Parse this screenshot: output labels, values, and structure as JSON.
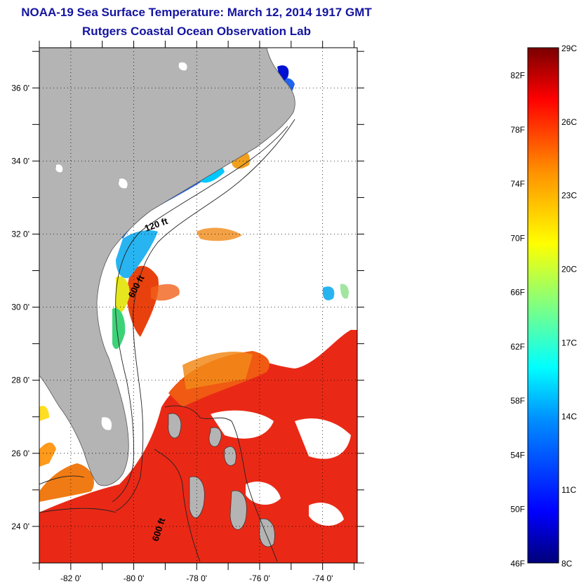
{
  "header": {
    "title": "NOAA-19 Sea Surface Temperature:  March 12, 2014 1917 GMT",
    "subtitle": "Rutgers Coastal Ocean Observation Lab"
  },
  "map": {
    "lon_range": [
      -83.0,
      -72.9
    ],
    "lat_range": [
      23.0,
      37.1
    ],
    "lat_ticks": [
      {
        "lat": 36,
        "label": "36 0'"
      },
      {
        "lat": 34,
        "label": "34 0'"
      },
      {
        "lat": 32,
        "label": "32 0'"
      },
      {
        "lat": 30,
        "label": "30 0'"
      },
      {
        "lat": 28,
        "label": "28 0'"
      },
      {
        "lat": 26,
        "label": "26 0'"
      },
      {
        "lat": 24,
        "label": "24 0'"
      }
    ],
    "lon_ticks": [
      {
        "lon": -82,
        "label": "-82 0'"
      },
      {
        "lon": -80,
        "label": "-80 0'"
      },
      {
        "lon": -78,
        "label": "-78 0'"
      },
      {
        "lon": -76,
        "label": "-76 0'"
      },
      {
        "lon": -74,
        "label": "-74 0'"
      }
    ],
    "contour_labels": [
      "120 ft",
      "600 ft",
      "600 ft"
    ],
    "colors": {
      "land": "#b4b4b4",
      "ocean_no_data": "#ffffff",
      "grid": "#000000"
    }
  },
  "colorbar": {
    "range_c": [
      8,
      29
    ],
    "range_f": [
      46,
      84
    ],
    "celsius_labels": [
      {
        "value": 29,
        "label": "29C"
      },
      {
        "value": 26,
        "label": "26C"
      },
      {
        "value": 23,
        "label": "23C"
      },
      {
        "value": 20,
        "label": "20C"
      },
      {
        "value": 17,
        "label": "17C"
      },
      {
        "value": 14,
        "label": "14C"
      },
      {
        "value": 11,
        "label": "11C"
      },
      {
        "value": 8,
        "label": "8C"
      }
    ],
    "fahrenheit_labels": [
      {
        "value": 82,
        "label": "82F"
      },
      {
        "value": 78,
        "label": "78F"
      },
      {
        "value": 74,
        "label": "74F"
      },
      {
        "value": 70,
        "label": "70F"
      },
      {
        "value": 66,
        "label": "66F"
      },
      {
        "value": 62,
        "label": "62F"
      },
      {
        "value": 58,
        "label": "58F"
      },
      {
        "value": 54,
        "label": "54F"
      },
      {
        "value": 50,
        "label": "50F"
      },
      {
        "value": 46,
        "label": "46F"
      }
    ],
    "stops": [
      "#00007a",
      "#0000ff",
      "#0090ff",
      "#00ffff",
      "#80ff80",
      "#ffff00",
      "#ff9000",
      "#ff0000",
      "#7a0000"
    ]
  }
}
